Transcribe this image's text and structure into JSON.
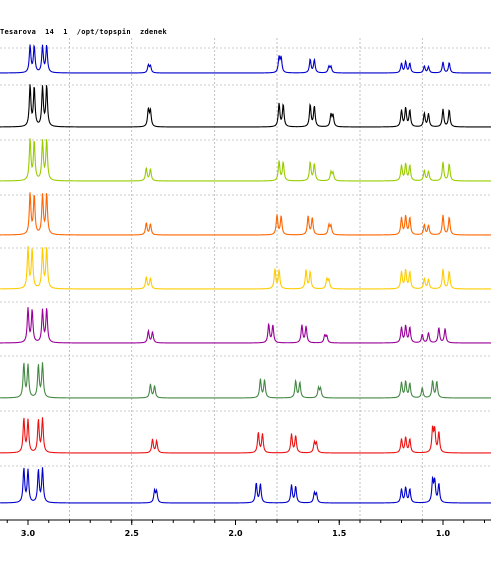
{
  "header": {
    "title": "Tesarova  14  1  /opt/topspin  zdenek"
  },
  "chart_data": {
    "type": "line",
    "title": "Tesarova  14  1  /opt/topspin  zdenek",
    "xlabel": "",
    "ylabel": "",
    "x_axis_reversed": true,
    "xlim": [
      3.13,
      0.78
    ],
    "x_ticks": [
      3.0,
      2.5,
      2.0,
      1.5,
      1.0
    ],
    "x_tick_labels": [
      "3.0",
      "2.5",
      "2.0",
      "1.5",
      "1.0"
    ],
    "x_gridlines": [
      2.8,
      2.5,
      2.1,
      1.8,
      1.4,
      1.1
    ],
    "grid": "dashed",
    "legend": "none",
    "series": [
      {
        "color": "#0000cc",
        "peaks": [
          {
            "x": 2.99,
            "y": 0.8
          },
          {
            "x": 2.97,
            "y": 0.78
          },
          {
            "x": 2.93,
            "y": 0.78
          },
          {
            "x": 2.91,
            "y": 0.8
          },
          {
            "x": 2.42,
            "y": 0.22
          },
          {
            "x": 2.41,
            "y": 0.2
          },
          {
            "x": 1.79,
            "y": 0.45
          },
          {
            "x": 1.78,
            "y": 0.43
          },
          {
            "x": 1.64,
            "y": 0.4
          },
          {
            "x": 1.62,
            "y": 0.38
          },
          {
            "x": 1.55,
            "y": 0.18
          },
          {
            "x": 1.54,
            "y": 0.18
          },
          {
            "x": 1.2,
            "y": 0.28
          },
          {
            "x": 1.18,
            "y": 0.33
          },
          {
            "x": 1.16,
            "y": 0.28
          },
          {
            "x": 1.09,
            "y": 0.2
          },
          {
            "x": 1.07,
            "y": 0.18
          },
          {
            "x": 1.0,
            "y": 0.32
          },
          {
            "x": 0.97,
            "y": 0.3
          }
        ]
      },
      {
        "color": "#000000",
        "peaks": [
          {
            "x": 2.99,
            "y": 1.2
          },
          {
            "x": 2.97,
            "y": 1.15
          },
          {
            "x": 2.93,
            "y": 1.15
          },
          {
            "x": 2.91,
            "y": 1.2
          },
          {
            "x": 2.42,
            "y": 0.5
          },
          {
            "x": 2.41,
            "y": 0.45
          },
          {
            "x": 1.79,
            "y": 0.68
          },
          {
            "x": 1.77,
            "y": 0.65
          },
          {
            "x": 1.64,
            "y": 0.65
          },
          {
            "x": 1.62,
            "y": 0.6
          },
          {
            "x": 1.54,
            "y": 0.35
          },
          {
            "x": 1.53,
            "y": 0.33
          },
          {
            "x": 1.2,
            "y": 0.48
          },
          {
            "x": 1.18,
            "y": 0.55
          },
          {
            "x": 1.16,
            "y": 0.48
          },
          {
            "x": 1.09,
            "y": 0.4
          },
          {
            "x": 1.07,
            "y": 0.38
          },
          {
            "x": 1.0,
            "y": 0.52
          },
          {
            "x": 0.97,
            "y": 0.5
          }
        ]
      },
      {
        "color": "#99cc00",
        "peaks": [
          {
            "x": 2.99,
            "y": 1.2
          },
          {
            "x": 2.97,
            "y": 1.15
          },
          {
            "x": 2.93,
            "y": 1.15
          },
          {
            "x": 2.91,
            "y": 1.2
          },
          {
            "x": 2.43,
            "y": 0.38
          },
          {
            "x": 2.41,
            "y": 0.35
          },
          {
            "x": 1.79,
            "y": 0.58
          },
          {
            "x": 1.77,
            "y": 0.55
          },
          {
            "x": 1.64,
            "y": 0.55
          },
          {
            "x": 1.62,
            "y": 0.5
          },
          {
            "x": 1.54,
            "y": 0.25
          },
          {
            "x": 1.53,
            "y": 0.23
          },
          {
            "x": 1.2,
            "y": 0.45
          },
          {
            "x": 1.18,
            "y": 0.5
          },
          {
            "x": 1.16,
            "y": 0.45
          },
          {
            "x": 1.09,
            "y": 0.3
          },
          {
            "x": 1.07,
            "y": 0.28
          },
          {
            "x": 1.0,
            "y": 0.55
          },
          {
            "x": 0.97,
            "y": 0.5
          }
        ]
      },
      {
        "color": "#ff6600",
        "peaks": [
          {
            "x": 2.99,
            "y": 1.2
          },
          {
            "x": 2.97,
            "y": 1.15
          },
          {
            "x": 2.93,
            "y": 1.15
          },
          {
            "x": 2.91,
            "y": 1.2
          },
          {
            "x": 2.43,
            "y": 0.35
          },
          {
            "x": 2.41,
            "y": 0.32
          },
          {
            "x": 1.8,
            "y": 0.58
          },
          {
            "x": 1.78,
            "y": 0.55
          },
          {
            "x": 1.65,
            "y": 0.55
          },
          {
            "x": 1.63,
            "y": 0.5
          },
          {
            "x": 1.55,
            "y": 0.28
          },
          {
            "x": 1.54,
            "y": 0.26
          },
          {
            "x": 1.2,
            "y": 0.5
          },
          {
            "x": 1.18,
            "y": 0.55
          },
          {
            "x": 1.16,
            "y": 0.5
          },
          {
            "x": 1.09,
            "y": 0.3
          },
          {
            "x": 1.07,
            "y": 0.28
          },
          {
            "x": 1.0,
            "y": 0.58
          },
          {
            "x": 0.97,
            "y": 0.52
          }
        ]
      },
      {
        "color": "#ffcc00",
        "peaks": [
          {
            "x": 3.0,
            "y": 1.2
          },
          {
            "x": 2.98,
            "y": 1.15
          },
          {
            "x": 2.93,
            "y": 1.15
          },
          {
            "x": 2.91,
            "y": 1.2
          },
          {
            "x": 2.43,
            "y": 0.35
          },
          {
            "x": 2.41,
            "y": 0.32
          },
          {
            "x": 1.81,
            "y": 0.58
          },
          {
            "x": 1.79,
            "y": 0.55
          },
          {
            "x": 1.66,
            "y": 0.55
          },
          {
            "x": 1.64,
            "y": 0.5
          },
          {
            "x": 1.56,
            "y": 0.28
          },
          {
            "x": 1.55,
            "y": 0.26
          },
          {
            "x": 1.2,
            "y": 0.5
          },
          {
            "x": 1.18,
            "y": 0.55
          },
          {
            "x": 1.16,
            "y": 0.5
          },
          {
            "x": 1.09,
            "y": 0.3
          },
          {
            "x": 1.07,
            "y": 0.28
          },
          {
            "x": 1.0,
            "y": 0.58
          },
          {
            "x": 0.97,
            "y": 0.52
          }
        ]
      },
      {
        "color": "#990099",
        "peaks": [
          {
            "x": 3.0,
            "y": 1.0
          },
          {
            "x": 2.98,
            "y": 0.95
          },
          {
            "x": 2.93,
            "y": 0.95
          },
          {
            "x": 2.91,
            "y": 1.0
          },
          {
            "x": 2.42,
            "y": 0.35
          },
          {
            "x": 2.4,
            "y": 0.32
          },
          {
            "x": 1.84,
            "y": 0.55
          },
          {
            "x": 1.82,
            "y": 0.52
          },
          {
            "x": 1.68,
            "y": 0.52
          },
          {
            "x": 1.66,
            "y": 0.48
          },
          {
            "x": 1.57,
            "y": 0.22
          },
          {
            "x": 1.56,
            "y": 0.2
          },
          {
            "x": 1.2,
            "y": 0.45
          },
          {
            "x": 1.18,
            "y": 0.5
          },
          {
            "x": 1.16,
            "y": 0.45
          },
          {
            "x": 1.1,
            "y": 0.25
          },
          {
            "x": 1.07,
            "y": 0.3
          },
          {
            "x": 1.02,
            "y": 0.45
          },
          {
            "x": 0.99,
            "y": 0.42
          }
        ]
      },
      {
        "color": "#448844",
        "peaks": [
          {
            "x": 3.02,
            "y": 1.0
          },
          {
            "x": 3.0,
            "y": 0.95
          },
          {
            "x": 2.95,
            "y": 0.95
          },
          {
            "x": 2.93,
            "y": 1.0
          },
          {
            "x": 2.41,
            "y": 0.4
          },
          {
            "x": 2.39,
            "y": 0.35
          },
          {
            "x": 1.88,
            "y": 0.55
          },
          {
            "x": 1.86,
            "y": 0.52
          },
          {
            "x": 1.71,
            "y": 0.5
          },
          {
            "x": 1.69,
            "y": 0.45
          },
          {
            "x": 1.6,
            "y": 0.28
          },
          {
            "x": 1.59,
            "y": 0.26
          },
          {
            "x": 1.2,
            "y": 0.45
          },
          {
            "x": 1.18,
            "y": 0.48
          },
          {
            "x": 1.16,
            "y": 0.42
          },
          {
            "x": 1.1,
            "y": 0.3
          },
          {
            "x": 1.05,
            "y": 0.5
          },
          {
            "x": 1.03,
            "y": 0.48
          }
        ]
      },
      {
        "color": "#ee1111",
        "peaks": [
          {
            "x": 3.02,
            "y": 1.0
          },
          {
            "x": 3.0,
            "y": 0.95
          },
          {
            "x": 2.95,
            "y": 0.95
          },
          {
            "x": 2.93,
            "y": 1.0
          },
          {
            "x": 2.4,
            "y": 0.4
          },
          {
            "x": 2.38,
            "y": 0.35
          },
          {
            "x": 1.89,
            "y": 0.6
          },
          {
            "x": 1.87,
            "y": 0.55
          },
          {
            "x": 1.73,
            "y": 0.55
          },
          {
            "x": 1.71,
            "y": 0.5
          },
          {
            "x": 1.62,
            "y": 0.3
          },
          {
            "x": 1.61,
            "y": 0.28
          },
          {
            "x": 1.2,
            "y": 0.4
          },
          {
            "x": 1.18,
            "y": 0.45
          },
          {
            "x": 1.16,
            "y": 0.4
          },
          {
            "x": 1.05,
            "y": 0.7
          },
          {
            "x": 1.04,
            "y": 0.65
          },
          {
            "x": 1.02,
            "y": 0.6
          }
        ]
      },
      {
        "color": "#0000cc",
        "peaks": [
          {
            "x": 3.02,
            "y": 1.0
          },
          {
            "x": 3.0,
            "y": 0.95
          },
          {
            "x": 2.95,
            "y": 0.95
          },
          {
            "x": 2.93,
            "y": 1.0
          },
          {
            "x": 2.39,
            "y": 0.35
          },
          {
            "x": 2.38,
            "y": 0.32
          },
          {
            "x": 1.9,
            "y": 0.58
          },
          {
            "x": 1.88,
            "y": 0.55
          },
          {
            "x": 1.73,
            "y": 0.52
          },
          {
            "x": 1.71,
            "y": 0.48
          },
          {
            "x": 1.62,
            "y": 0.28
          },
          {
            "x": 1.61,
            "y": 0.26
          },
          {
            "x": 1.2,
            "y": 0.4
          },
          {
            "x": 1.18,
            "y": 0.45
          },
          {
            "x": 1.16,
            "y": 0.4
          },
          {
            "x": 1.05,
            "y": 0.65
          },
          {
            "x": 1.04,
            "y": 0.62
          },
          {
            "x": 1.02,
            "y": 0.55
          }
        ]
      }
    ]
  }
}
